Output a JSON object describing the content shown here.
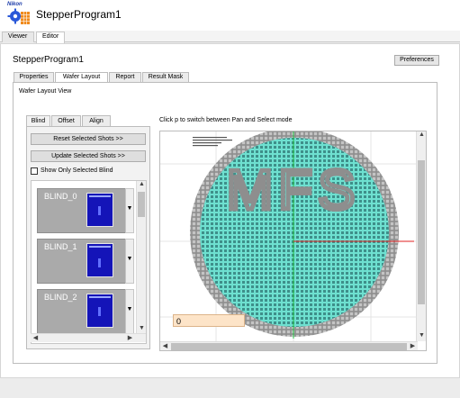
{
  "app": {
    "title": "StepperProgram1",
    "logo_text": "Nikon",
    "logo_icon": "gear-icon"
  },
  "top_tabs": [
    {
      "label": "Viewer",
      "active": false
    },
    {
      "label": "Editor",
      "active": true
    }
  ],
  "program": {
    "title": "StepperProgram1",
    "preferences_label": "Preferences"
  },
  "tabs": [
    {
      "label": "Properties",
      "active": false
    },
    {
      "label": "Wafer Layout",
      "active": true
    },
    {
      "label": "Report",
      "active": false
    },
    {
      "label": "Result Mask",
      "active": false
    }
  ],
  "panel": {
    "label": "Wafer Layout View",
    "hint": "Click p to switch between Pan and Select mode"
  },
  "subtabs": [
    {
      "label": "Blind",
      "active": true
    },
    {
      "label": "Offset",
      "active": false
    },
    {
      "label": "Align",
      "active": false
    }
  ],
  "blind_panel": {
    "reset_label": "Reset Selected Shots >>",
    "update_label": "Update Selected Shots >>",
    "show_only_label": "Show Only Selected Blind",
    "show_only_checked": false,
    "items": [
      {
        "name": "BLIND_0"
      },
      {
        "name": "BLIND_1"
      },
      {
        "name": "BLIND_2"
      }
    ]
  },
  "wafer": {
    "overlay_text": "MFS",
    "input_value": "0",
    "colors": {
      "die": "#6ee0d0",
      "die_grid": "#2a6c6c",
      "edge": "#9a9a9a",
      "background": "#ffffff",
      "axis_x": "#e02020",
      "axis_y": "#20c040"
    }
  }
}
